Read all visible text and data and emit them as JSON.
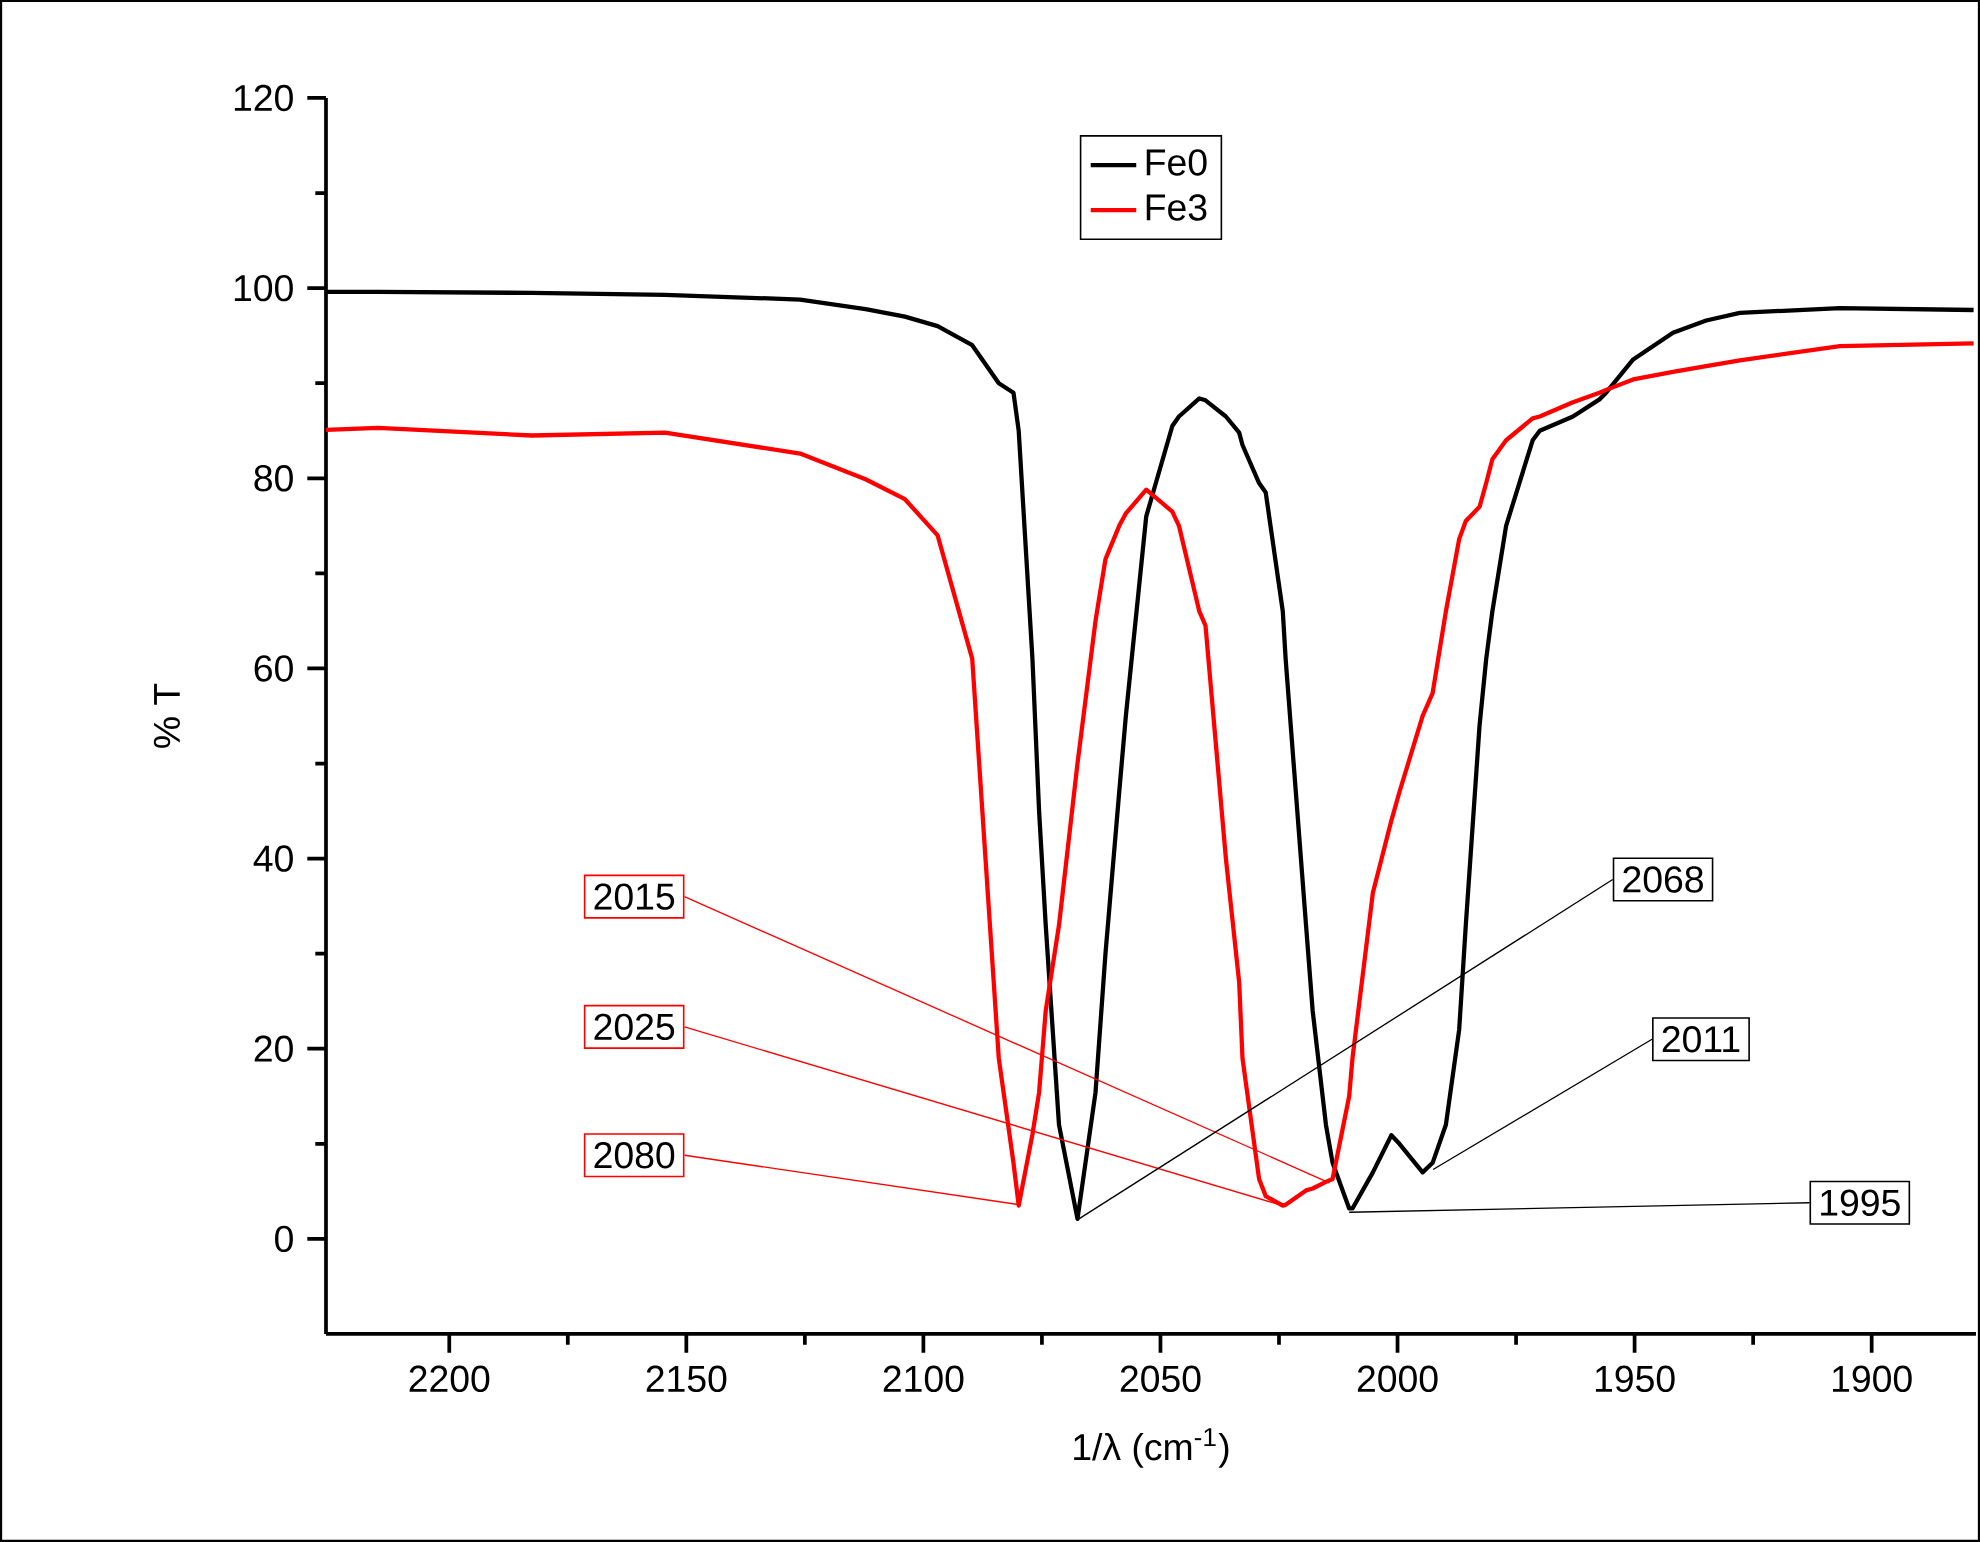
{
  "chart_data": {
    "type": "line",
    "xlabel": "1/λ (cm$^{-1}$)",
    "ylabel": "% T",
    "x": [
      2226,
      2215,
      2182.6,
      2154.5,
      2126,
      2112.2,
      2103.9,
      2097,
      2089.7,
      2086.9,
      2084.1,
      2081,
      2079.9,
      2077,
      2075.6,
      2074.2,
      2071.4,
      2067.5,
      2063.7,
      2061.6,
      2058.7,
      2057.3,
      2053,
      2047.5,
      2046.1,
      2041.8,
      2040.5,
      2036.2,
      2033.4,
      2032.7,
      2029.2,
      2027.8,
      2024.2,
      2023.6,
      2019.3,
      2017.9,
      2015.1,
      2013.7,
      2010.2,
      2009.5,
      2005.2,
      2001.3,
      1999.6,
      1994.7,
      1992.6,
      1989.8,
      1987,
      1985.6,
      1982.7,
      1981.3,
      1980,
      1977.1,
      1971.5,
      1970,
      1963,
      1957.4,
      1956,
      1950.3,
      1941.9,
      1934.9,
      1927.8,
      1906.7,
      1878.5
    ],
    "series": [
      {
        "name": "Fe0",
        "color": "#000000",
        "values": [
          99.6,
          99.6,
          99.5,
          99.3,
          98.8,
          97.8,
          97,
          96,
          94,
          92,
          90,
          89,
          85,
          61,
          45,
          33,
          12,
          2.1,
          15.4,
          30,
          47,
          55,
          76,
          85.5,
          86.5,
          88.4,
          88.2,
          86.5,
          84.8,
          83.5,
          79.5,
          78.5,
          66,
          61,
          33,
          24,
          12,
          8,
          3.2,
          3.2,
          7,
          10.9,
          10,
          7,
          8,
          12,
          22,
          33,
          54,
          61,
          66,
          75,
          84,
          85,
          86.5,
          88.3,
          89,
          92.5,
          95.3,
          96.6,
          97.4,
          97.9,
          97.7
        ]
      },
      {
        "name": "Fe3",
        "color": "#ff0000",
        "values": [
          85.1,
          85.3,
          84.5,
          84.8,
          82.6,
          79.9,
          77.8,
          74,
          61,
          40,
          19,
          8,
          3.5,
          11,
          15.4,
          24,
          33,
          50,
          65,
          71.5,
          75,
          76.3,
          78.8,
          76.5,
          75,
          66,
          64.5,
          40,
          27,
          19,
          6.3,
          4.5,
          3.5,
          3.6,
          5.1,
          5.3,
          6,
          6.3,
          15,
          19,
          36.4,
          44,
          47,
          55,
          57.4,
          66,
          73.6,
          75.5,
          77,
          79.5,
          82,
          84,
          86.3,
          86.5,
          88,
          89,
          89.3,
          90.4,
          91.2,
          91.8,
          92.4,
          93.9,
          94.2
        ]
      }
    ],
    "xlim": [
      2226,
      1878
    ],
    "ylim": [
      -10,
      120
    ],
    "xticks": [
      2200,
      2150,
      2100,
      2050,
      2000,
      1950,
      1900
    ],
    "yticks": [
      0,
      20,
      40,
      60,
      80,
      100,
      120
    ],
    "legend": "top",
    "annotations": [
      {
        "text": "2015",
        "x": 2014.4,
        "y": 5.9
      },
      {
        "text": "2025",
        "x": 2024.9,
        "y": 3.6
      },
      {
        "text": "2080",
        "x": 2079.8,
        "y": 3.6
      },
      {
        "text": "2068",
        "x": 2067.2,
        "y": 2.1
      },
      {
        "text": "2011",
        "x": 1992.5,
        "y": 7.3
      },
      {
        "text": "1995",
        "x": 2010.2,
        "y": 2.8
      }
    ]
  }
}
